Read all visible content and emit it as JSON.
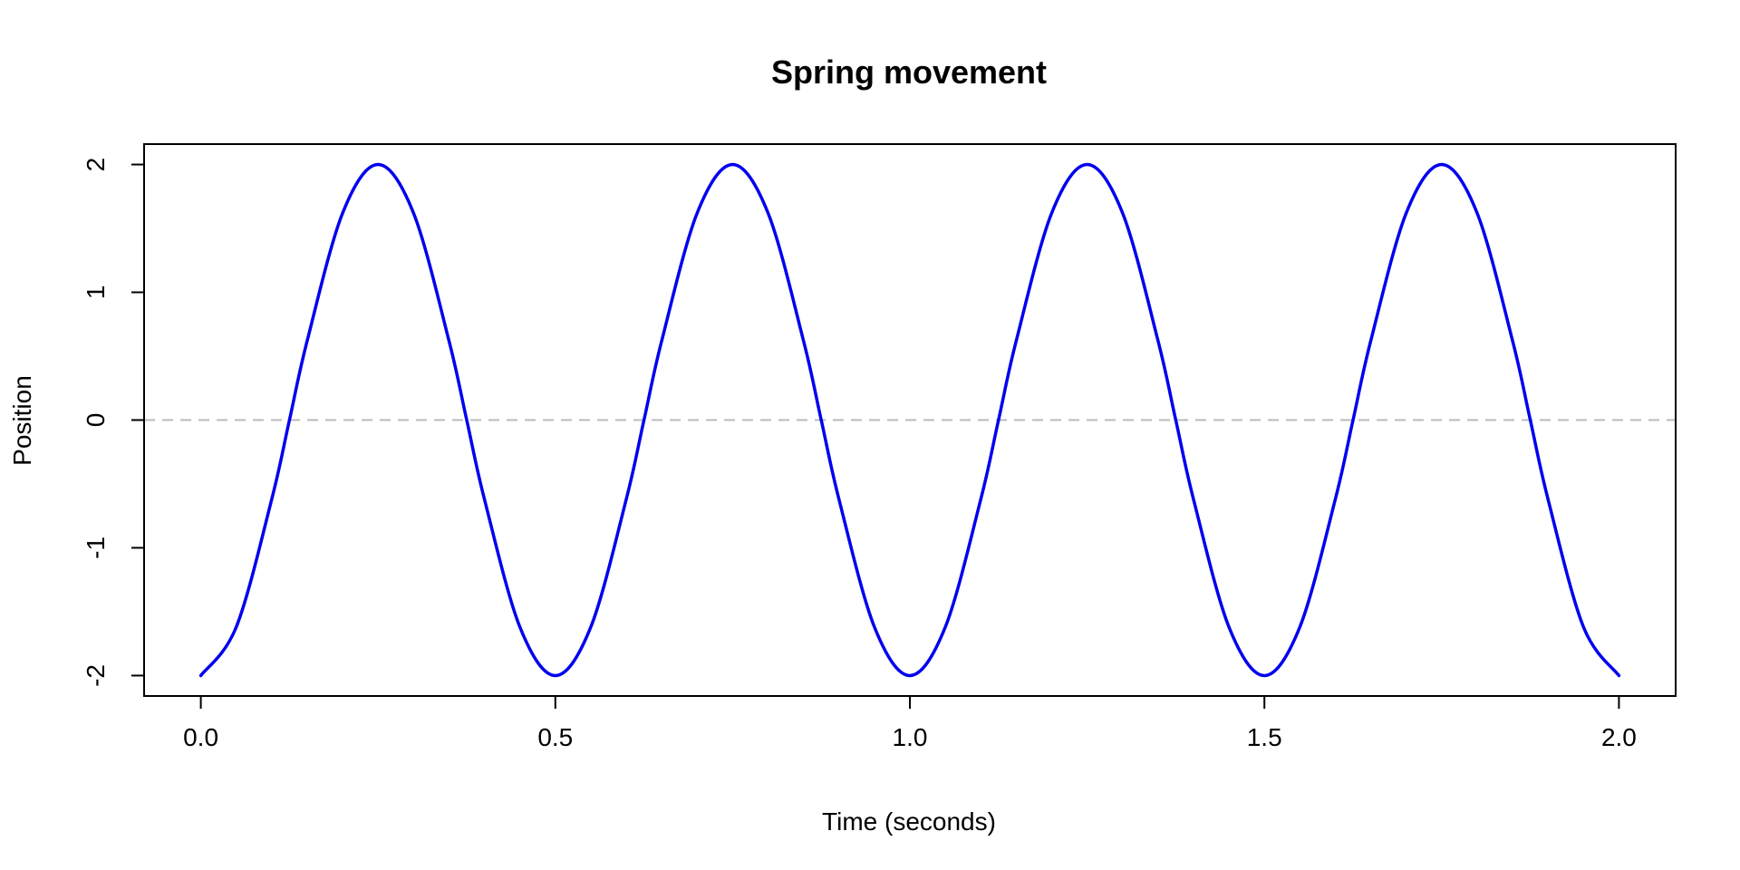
{
  "chart_data": {
    "type": "line",
    "title": "Spring movement",
    "xlabel": "Time (seconds)",
    "ylabel": "Position",
    "xlim": [
      -0.08,
      2.08
    ],
    "ylim": [
      -2.16,
      2.16
    ],
    "x_ticks": [
      0.0,
      0.5,
      1.0,
      1.5,
      2.0
    ],
    "x_tick_labels": [
      "0.0",
      "0.5",
      "1.0",
      "1.5",
      "2.0"
    ],
    "y_ticks": [
      -2,
      -1,
      0,
      1,
      2
    ],
    "y_tick_labels": [
      "-2",
      "-1",
      "0",
      "1",
      "2"
    ],
    "grid": false,
    "reference_line": {
      "y": 0,
      "style": "dashed",
      "color": "#bbbbbb"
    },
    "series": [
      {
        "color": "#0000ee",
        "x": [
          0.0,
          0.05,
          0.1,
          0.125,
          0.15,
          0.2,
          0.25,
          0.3,
          0.35,
          0.375,
          0.4,
          0.45,
          0.5,
          0.55,
          0.6,
          0.625,
          0.65,
          0.7,
          0.75,
          0.8,
          0.85,
          0.875,
          0.9,
          0.95,
          1.0,
          1.05,
          1.1,
          1.125,
          1.15,
          1.2,
          1.25,
          1.3,
          1.35,
          1.375,
          1.4,
          1.45,
          1.5,
          1.55,
          1.6,
          1.625,
          1.65,
          1.7,
          1.75,
          1.8,
          1.85,
          1.875,
          1.9,
          1.95,
          2.0
        ],
        "y": [
          -2.0,
          -1.62,
          -0.62,
          0.0,
          0.62,
          1.62,
          2.0,
          1.62,
          0.62,
          0.0,
          -0.62,
          -1.62,
          -2.0,
          -1.62,
          -0.62,
          0.0,
          0.62,
          1.62,
          2.0,
          1.62,
          0.62,
          0.0,
          -0.62,
          -1.62,
          -2.0,
          -1.62,
          -0.62,
          0.0,
          0.62,
          1.62,
          2.0,
          1.62,
          0.62,
          0.0,
          -0.62,
          -1.62,
          -2.0,
          -1.62,
          -0.62,
          0.0,
          0.62,
          1.62,
          2.0,
          1.62,
          0.62,
          0.0,
          -0.62,
          -1.62,
          -2.0
        ]
      }
    ]
  }
}
